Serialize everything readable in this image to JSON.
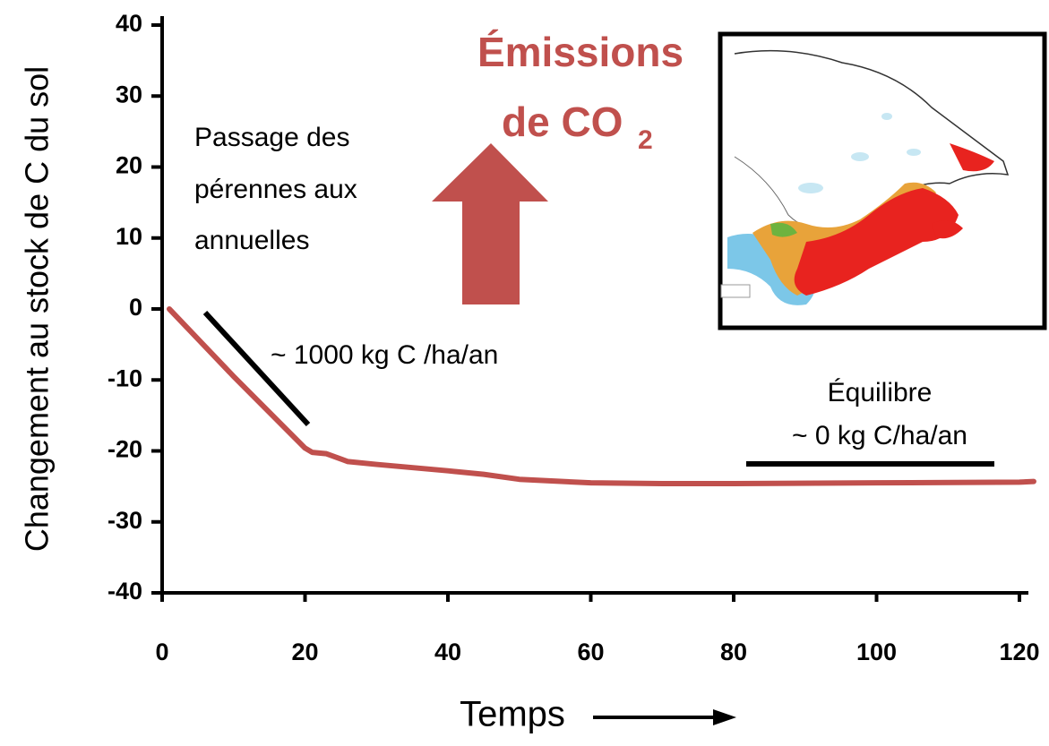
{
  "chart_data": {
    "type": "line",
    "y_label": "Changement au stock de C du sol",
    "x_label": "Temps",
    "xlim": [
      0,
      120
    ],
    "xticks": [
      0,
      20,
      40,
      60,
      80,
      100,
      120
    ],
    "ylim": [
      -40,
      40
    ],
    "yticks": [
      -40,
      -30,
      -20,
      -10,
      0,
      10,
      20,
      30,
      40
    ],
    "series": [
      {
        "color": "#c0504d",
        "x": [
          1,
          10,
          20,
          21,
          23,
          26,
          30,
          40,
          45,
          50,
          60,
          70,
          80,
          100,
          120,
          122
        ],
        "values": [
          0,
          -9.5,
          -19.6,
          -20.2,
          -20.4,
          -21.5,
          -21.9,
          -22.8,
          -23.3,
          -24.0,
          -24.5,
          -24.6,
          -24.6,
          -24.5,
          -24.4,
          -24.3
        ]
      }
    ],
    "annotations": {
      "transition": [
        "Passage des",
        "pérennes aux",
        "annuelles"
      ],
      "rate": "~ 1000 kg C /ha/an",
      "equilibrium": [
        "Équilibre",
        "~ 0 kg C/ha/an"
      ],
      "emissions": [
        "Émissions",
        "de CO",
        "2"
      ]
    }
  }
}
